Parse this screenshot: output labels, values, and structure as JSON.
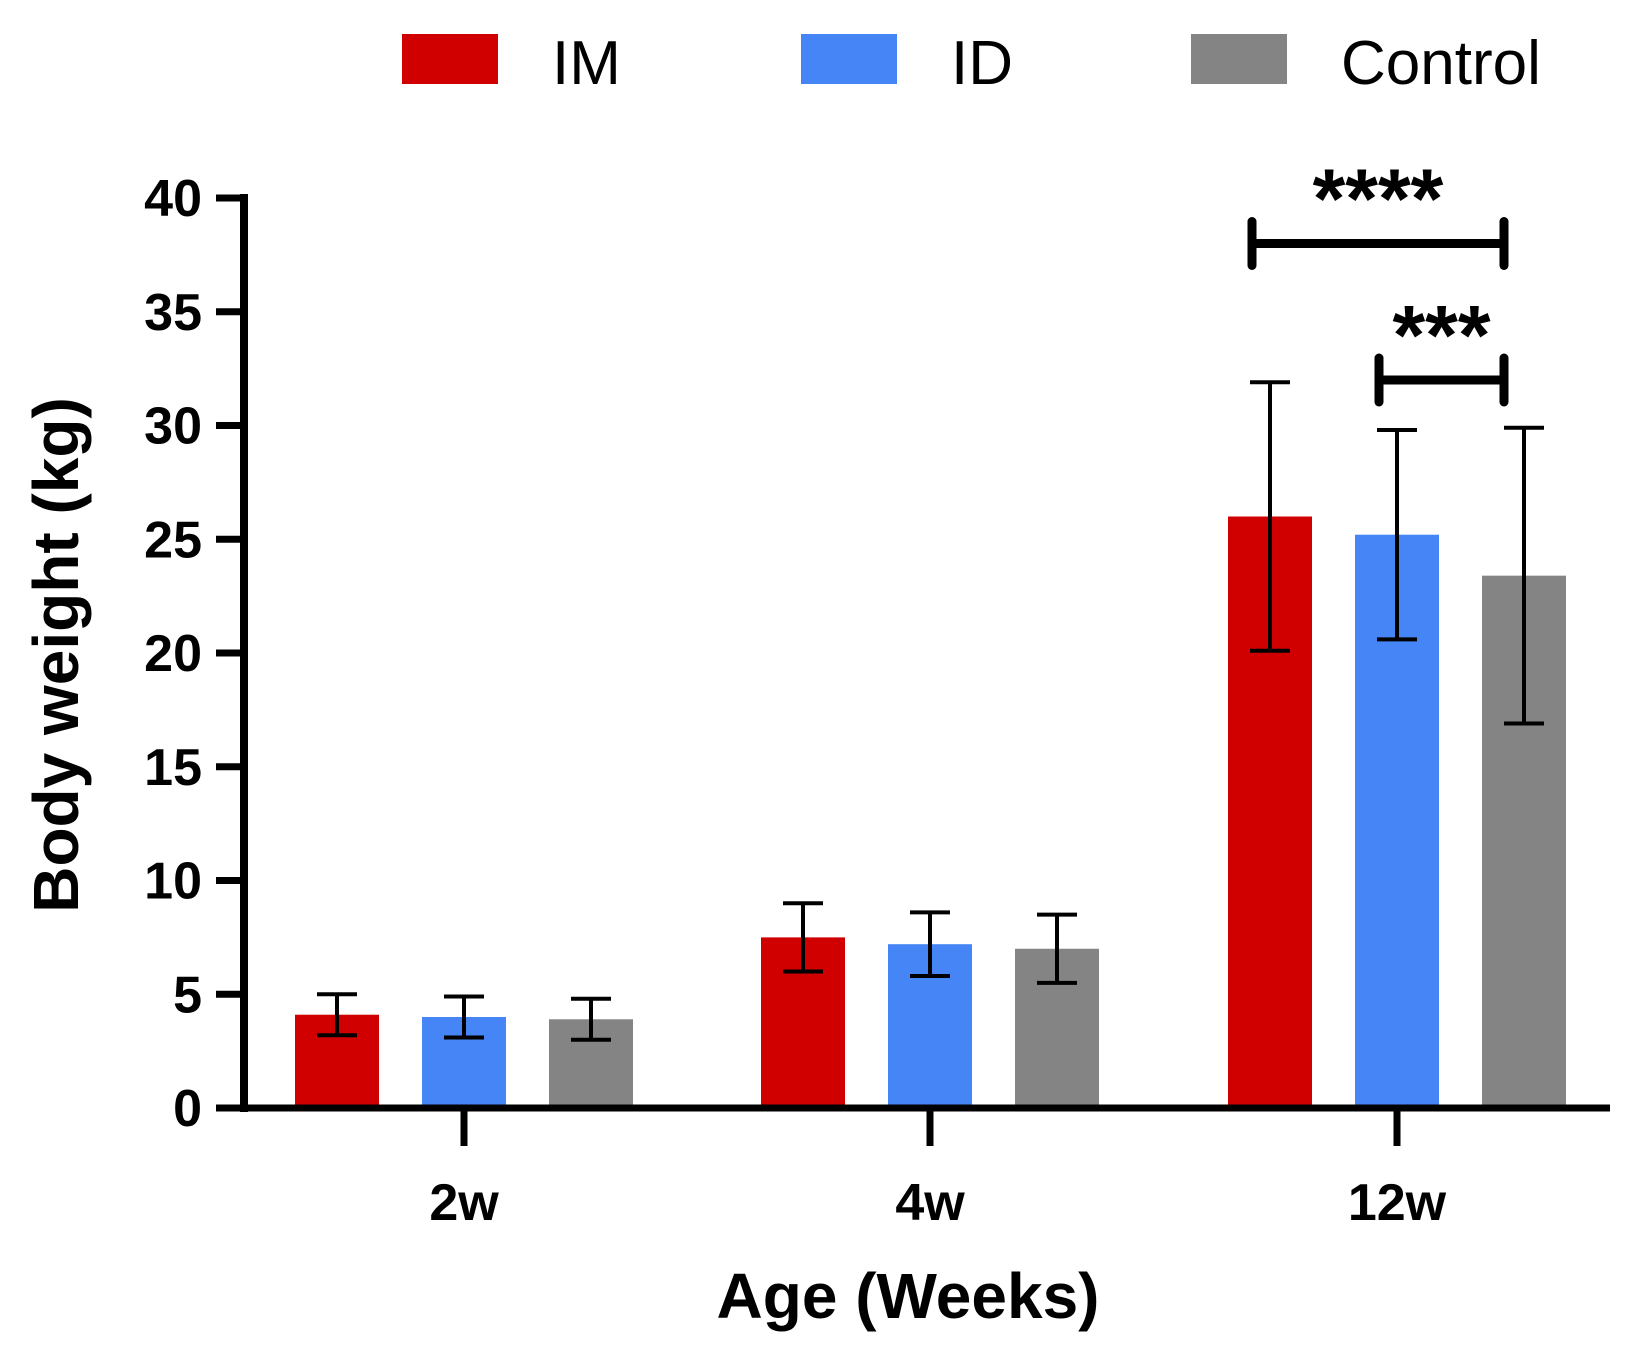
{
  "chart_data": {
    "type": "bar",
    "title": "",
    "xlabel": "Age (Weeks)",
    "ylabel": "Body weight (kg)",
    "ylim": [
      0,
      40
    ],
    "yticks": [
      "0",
      "5",
      "10",
      "15",
      "20",
      "25",
      "30",
      "35",
      "40"
    ],
    "categories": [
      "2w",
      "4w",
      "12w"
    ],
    "legend_position": "top",
    "series": [
      {
        "name": "IM",
        "color": "#d10000",
        "values": [
          4.1,
          7.5,
          26.0
        ],
        "errors": [
          0.9,
          1.5,
          5.9
        ]
      },
      {
        "name": "ID",
        "color": "#4585f5",
        "values": [
          4.0,
          7.2,
          25.2
        ],
        "errors": [
          0.9,
          1.4,
          4.6
        ]
      },
      {
        "name": "Control",
        "color": "#848484",
        "values": [
          3.9,
          7.0,
          23.4
        ],
        "errors": [
          0.9,
          1.5,
          6.5
        ]
      }
    ],
    "significance": [
      {
        "category": "12w",
        "from_series": "IM",
        "to_series": "Control",
        "y": 38.0,
        "label": "****"
      },
      {
        "category": "12w",
        "from_series": "ID",
        "to_series": "Control",
        "y": 32.0,
        "label": "***"
      }
    ]
  }
}
